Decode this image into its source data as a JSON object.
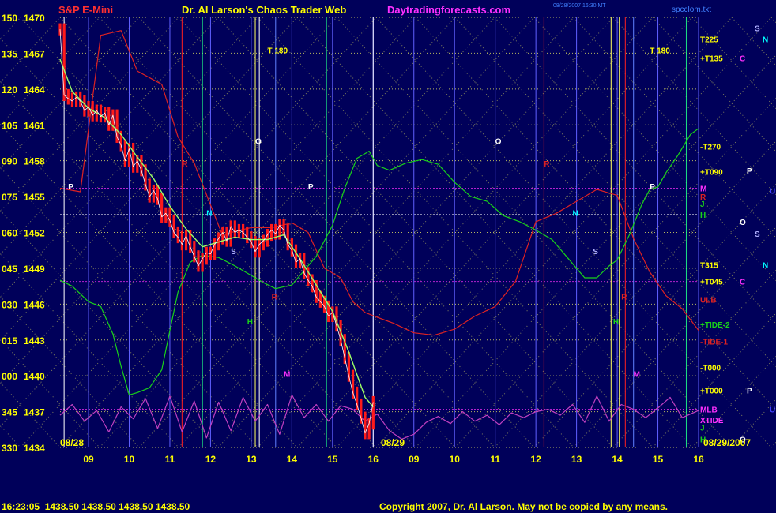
{
  "header": {
    "instrument": "S&P E-Mini",
    "title": "Dr. Al Larson's Chaos Trader Web",
    "website": "Daytradingforecasts.com",
    "timestamp": "08/28/2007 16:30 MT",
    "file_name": "spcclom.txt"
  },
  "footer": {
    "quote": "16:23:05  1438.50 1438.50 1438.50 1438.50",
    "copyright": "Copyright 2007, Dr. Al Larson. May not be copied by any means."
  },
  "date_labels": {
    "day1": "08/28",
    "day2": "08/29",
    "end": "08/29/2007"
  },
  "colors": {
    "background": "#00005a",
    "price_candles": "#ff1a1a",
    "moving_average": "#9cff66",
    "green_flux": "#19d219",
    "red_flux": "#dd2222",
    "oscillator": "#c040c0",
    "grid_yellow": "#e8e860",
    "axis_text": "#ffff00",
    "header_red": "#ff3030",
    "header_yellow": "#ffff00",
    "header_magenta": "#ff30ff"
  },
  "chart_data": {
    "type": "line",
    "title": "S&P E-Mini",
    "ylabel_left": [
      "150",
      "135",
      "120",
      "105",
      "090",
      "075",
      "060",
      "045",
      "030",
      "015",
      "000",
      "345",
      "330"
    ],
    "ylabel_right": [
      "1470",
      "1467",
      "1464",
      "1461",
      "1458",
      "1455",
      "1452",
      "1449",
      "1446",
      "1443",
      "1440",
      "1437",
      "1434"
    ],
    "ylim": [
      1434,
      1470
    ],
    "x_ticks": [
      "09",
      "10",
      "11",
      "12",
      "13",
      "14",
      "15",
      "16",
      "09",
      "10",
      "11",
      "12",
      "13",
      "14",
      "15",
      "16"
    ],
    "xlim": [
      8.3,
      24
    ],
    "price_series": {
      "name": "S&P E-Mini",
      "x": [
        8.3,
        8.4,
        8.5,
        8.6,
        8.7,
        8.8,
        8.9,
        9.0,
        9.1,
        9.2,
        9.3,
        9.4,
        9.5,
        9.6,
        9.7,
        9.8,
        9.9,
        10.0,
        10.1,
        10.2,
        10.3,
        10.4,
        10.5,
        10.6,
        10.7,
        10.8,
        10.9,
        11.0,
        11.1,
        11.2,
        11.3,
        11.4,
        11.5,
        11.6,
        11.7,
        11.8,
        11.9,
        12.0,
        12.1,
        12.2,
        12.3,
        12.4,
        12.5,
        12.6,
        12.7,
        12.8,
        12.9,
        13.0,
        13.1,
        13.2,
        13.3,
        13.4,
        13.5,
        13.6,
        13.7,
        13.8,
        13.9,
        14.0,
        14.1,
        14.2,
        14.3,
        14.4,
        14.5,
        14.6,
        14.7,
        14.8,
        14.9,
        15.0,
        15.1,
        15.2,
        15.3,
        15.4,
        15.5,
        15.6,
        15.7,
        15.8,
        15.9,
        16.0
      ],
      "values": [
        1469,
        1463.5,
        1463.2,
        1463,
        1463.3,
        1463,
        1462.2,
        1462.5,
        1461.8,
        1462.2,
        1461.7,
        1462,
        1461,
        1461.8,
        1460,
        1459.3,
        1458,
        1459,
        1457.5,
        1458,
        1457.2,
        1456,
        1455,
        1455.5,
        1454.8,
        1453.3,
        1453.6,
        1453,
        1452,
        1451.6,
        1451,
        1451.7,
        1450.8,
        1450,
        1449.2,
        1449.8,
        1450.3,
        1450.2,
        1451,
        1451.5,
        1452,
        1451.3,
        1452.5,
        1452,
        1452.2,
        1452,
        1451.6,
        1451.2,
        1450.4,
        1451,
        1451.3,
        1451.8,
        1452.2,
        1451.9,
        1452.6,
        1452.2,
        1451,
        1450.5,
        1449.5,
        1449.8,
        1448.6,
        1448,
        1447.5,
        1446.6,
        1446.2,
        1445.8,
        1445,
        1445.3,
        1444.2,
        1443,
        1441.5,
        1440,
        1438.6,
        1437.6,
        1436.5,
        1435.2,
        1436,
        1437.8
      ]
    },
    "ma_series": {
      "name": "",
      "x": [
        8.3,
        8.6,
        9.0,
        9.4,
        9.8,
        10.2,
        10.6,
        11.0,
        11.4,
        11.8,
        12.2,
        12.6,
        13.0,
        13.4,
        13.8,
        14.2,
        14.6,
        15.0,
        15.4,
        15.8,
        16.0
      ],
      "values": [
        1466.5,
        1463.8,
        1462.4,
        1461.6,
        1460.2,
        1458.3,
        1456.5,
        1454.2,
        1452.3,
        1450.8,
        1451.2,
        1451.6,
        1451.4,
        1451.4,
        1451.8,
        1449.8,
        1447.6,
        1445.4,
        1442,
        1438.2,
        1437.4
      ]
    },
    "green_flux_series": {
      "name": "",
      "x": [
        8.3,
        8.6,
        9.0,
        9.3,
        9.6,
        9.8,
        10.0,
        10.2,
        10.5,
        10.8,
        11.0,
        11.2,
        11.5,
        11.8,
        12.2,
        12.6,
        13.0,
        13.3,
        13.6,
        14.0,
        14.3,
        14.6,
        15.0,
        15.3,
        15.6,
        15.9,
        16.1,
        16.4,
        16.8,
        17.2,
        17.6,
        18.0,
        18.4,
        18.8,
        19.2,
        19.6,
        20.0,
        20.4,
        20.8,
        21.2,
        21.5,
        21.8,
        22.0,
        22.3,
        22.6,
        22.8,
        23.0,
        23.2,
        23.5,
        23.8,
        24.0
      ],
      "values": [
        1448,
        1447.5,
        1446.2,
        1445.8,
        1443.5,
        1440.8,
        1438.4,
        1438.6,
        1439,
        1440.5,
        1443.8,
        1447,
        1449.5,
        1450.1,
        1449.9,
        1449.2,
        1448.4,
        1447.8,
        1447.3,
        1447.6,
        1448.8,
        1450,
        1452.6,
        1455.7,
        1458.2,
        1458.8,
        1457.6,
        1457.2,
        1457.8,
        1458.1,
        1457.7,
        1456.2,
        1455,
        1454.6,
        1453.4,
        1452.9,
        1452.2,
        1451.4,
        1449.8,
        1448.2,
        1448.2,
        1449.2,
        1449.7,
        1451.8,
        1454.3,
        1455.6,
        1455.8,
        1457,
        1458.5,
        1460.2,
        1460.7
      ]
    },
    "red_flux_series": {
      "name": "",
      "x": [
        8.3,
        8.8,
        9.3,
        9.8,
        10.2,
        10.8,
        11.2,
        11.6,
        12.0,
        12.3,
        12.6,
        13.0,
        13.5,
        14.0,
        14.4,
        14.8,
        15.2,
        15.5,
        15.8,
        16.1,
        16.5,
        17.0,
        17.5,
        18.0,
        18.5,
        19.0,
        19.5,
        20.0,
        20.5,
        21.0,
        21.5,
        22.0,
        22.4,
        22.8,
        23.2,
        23.6,
        24.0
      ],
      "values": [
        1455.7,
        1455.4,
        1468.5,
        1468.9,
        1465.5,
        1464.4,
        1460,
        1457.8,
        1454.3,
        1451.7,
        1452.1,
        1452.4,
        1452.4,
        1452.8,
        1452,
        1449,
        1448.2,
        1446.2,
        1445.3,
        1444.9,
        1444.4,
        1443.6,
        1443.4,
        1443.9,
        1445,
        1445.8,
        1447.9,
        1452.9,
        1453.6,
        1454.6,
        1455.6,
        1455.1,
        1451.5,
        1448.7,
        1446.7,
        1445.6,
        1443.8
      ]
    },
    "oscillator_series": {
      "name": "",
      "x": [
        8.3,
        8.6,
        8.9,
        9.2,
        9.5,
        9.8,
        10.1,
        10.4,
        10.7,
        11.0,
        11.3,
        11.6,
        11.9,
        12.2,
        12.5,
        12.8,
        13.1,
        13.4,
        13.7,
        14.0,
        14.3,
        14.6,
        14.9,
        15.2,
        15.5,
        15.8,
        16.1,
        16.4,
        16.7,
        17.0,
        17.3,
        17.6,
        17.9,
        18.2,
        18.5,
        18.8,
        19.1,
        19.4,
        19.7,
        20.0,
        20.3,
        20.6,
        20.9,
        21.2,
        21.5,
        21.8,
        22.1,
        22.4,
        22.7,
        23.0,
        23.3,
        23.6,
        24.0
      ],
      "values": [
        1436.7,
        1437.6,
        1436.2,
        1437.1,
        1435.3,
        1437.4,
        1436.4,
        1438.1,
        1435.6,
        1438.3,
        1435.3,
        1437.9,
        1434.8,
        1437.8,
        1435.4,
        1438.2,
        1436.2,
        1437.6,
        1435.1,
        1438.4,
        1436.5,
        1437.6,
        1436.2,
        1437.5,
        1437.2,
        1436.2,
        1436.8,
        1435.4,
        1434.7,
        1435.1,
        1436.1,
        1436.6,
        1436,
        1437,
        1436.2,
        1436.7,
        1435.9,
        1436.9,
        1436.5,
        1437,
        1437.2,
        1436.7,
        1437.6,
        1436.1,
        1438.3,
        1436.2,
        1437.6,
        1437.2,
        1436.5,
        1437.3,
        1438.2,
        1436.5,
        1437.1
      ]
    },
    "markers": [
      {
        "label": "P",
        "x": 8.5,
        "y": 1455.6,
        "color": "#ffffff"
      },
      {
        "label": "N",
        "x": 11.9,
        "y": 1453.4,
        "color": "#00ffff"
      },
      {
        "label": "S",
        "x": 12.5,
        "y": 1450.2,
        "color": "#b0b0ff"
      },
      {
        "label": "O",
        "x": 13.1,
        "y": 1459.4,
        "color": "#ffffff"
      },
      {
        "label": "P",
        "x": 14.4,
        "y": 1455.6,
        "color": "#ffffff"
      },
      {
        "label": "T 180",
        "x": 13.4,
        "y": 1467,
        "color": "#ffff00"
      },
      {
        "label": "M",
        "x": 13.8,
        "y": 1439.9,
        "color": "#ff30ff"
      },
      {
        "label": "R",
        "x": 11.3,
        "y": 1457.5,
        "color": "#dd2222"
      },
      {
        "label": "R",
        "x": 13.5,
        "y": 1446.4,
        "color": "#dd2222"
      },
      {
        "label": "H",
        "x": 12.9,
        "y": 1444.3,
        "color": "#19d219"
      },
      {
        "label": "O",
        "x": 19.0,
        "y": 1459.4,
        "color": "#ffffff"
      },
      {
        "label": "N",
        "x": 20.9,
        "y": 1453.4,
        "color": "#00ffff"
      },
      {
        "label": "S",
        "x": 21.4,
        "y": 1450.2,
        "color": "#b0b0ff"
      },
      {
        "label": "P",
        "x": 22.8,
        "y": 1455.6,
        "color": "#ffffff"
      },
      {
        "label": "T 180",
        "x": 22.8,
        "y": 1467,
        "color": "#ffff00"
      },
      {
        "label": "M",
        "x": 22.4,
        "y": 1439.9,
        "color": "#ff30ff"
      },
      {
        "label": "R",
        "x": 20.2,
        "y": 1457.5,
        "color": "#dd2222"
      },
      {
        "label": "R",
        "x": 22.1,
        "y": 1446.4,
        "color": "#dd2222"
      },
      {
        "label": "H",
        "x": 21.9,
        "y": 1444.3,
        "color": "#19d219"
      }
    ],
    "right_labels": [
      {
        "label": "T225",
        "y": 1468.2,
        "color": "#ffff00"
      },
      {
        "label": "+T135",
        "y": 1466.6,
        "color": "#ffff00"
      },
      {
        "label": "-T270",
        "y": 1459.2,
        "color": "#ffff00"
      },
      {
        "label": "+T090",
        "y": 1457.1,
        "color": "#ffff00"
      },
      {
        "label": "M",
        "y": 1455.7,
        "color": "#ff30ff"
      },
      {
        "label": "R",
        "y": 1455,
        "color": "#dd2222"
      },
      {
        "label": "J",
        "y": 1454.4,
        "color": "#19d219"
      },
      {
        "label": "H",
        "y": 1453.5,
        "color": "#19d219"
      },
      {
        "label": "T315",
        "y": 1449.3,
        "color": "#ffff00"
      },
      {
        "label": "+T045",
        "y": 1447.9,
        "color": "#ffff00"
      },
      {
        "label": "ULB",
        "y": 1446.4,
        "color": "#dd2222"
      },
      {
        "label": "+TIDE-2",
        "y": 1444.3,
        "color": "#19d219"
      },
      {
        "label": "-TIDE-1",
        "y": 1442.9,
        "color": "#dd2222"
      },
      {
        "label": "-T000",
        "y": 1440.7,
        "color": "#ffff00"
      },
      {
        "label": "+T000",
        "y": 1438.8,
        "color": "#ffff00"
      },
      {
        "label": "MLB",
        "y": 1437.2,
        "color": "#ff30ff"
      },
      {
        "label": "XTIDE",
        "y": 1436.3,
        "color": "#ff30ff"
      },
      {
        "label": "J",
        "y": 1435.7,
        "color": "#19d219"
      },
      {
        "label": "H",
        "y": 1434.7,
        "color": "#19d219"
      }
    ],
    "far_right_labels": [
      {
        "label": "S",
        "x": 955,
        "y": 1469.1,
        "color": "#b0b0ff"
      },
      {
        "label": "N",
        "x": 965,
        "y": 1468.2,
        "color": "#00ffff"
      },
      {
        "label": "C",
        "x": 936,
        "y": 1466.6,
        "color": "#ff30ff"
      },
      {
        "label": "P",
        "x": 945,
        "y": 1457.2,
        "color": "#ffffff"
      },
      {
        "label": "U",
        "x": 974,
        "y": 1455.5,
        "color": "#4040ff"
      },
      {
        "label": "O",
        "x": 936,
        "y": 1452.9,
        "color": "#ffffff"
      },
      {
        "label": "S",
        "x": 955,
        "y": 1451.9,
        "color": "#b0b0ff"
      },
      {
        "label": "N",
        "x": 965,
        "y": 1449.3,
        "color": "#00ffff"
      },
      {
        "label": "C",
        "x": 936,
        "y": 1447.9,
        "color": "#ff30ff"
      },
      {
        "label": "P",
        "x": 945,
        "y": 1438.8,
        "color": "#ffffff"
      },
      {
        "label": "U",
        "x": 974,
        "y": 1437.2,
        "color": "#4040ff"
      },
      {
        "label": "O",
        "x": 936,
        "y": 1434.7,
        "color": "#ffffff"
      }
    ],
    "grid": true,
    "legend": "none"
  }
}
